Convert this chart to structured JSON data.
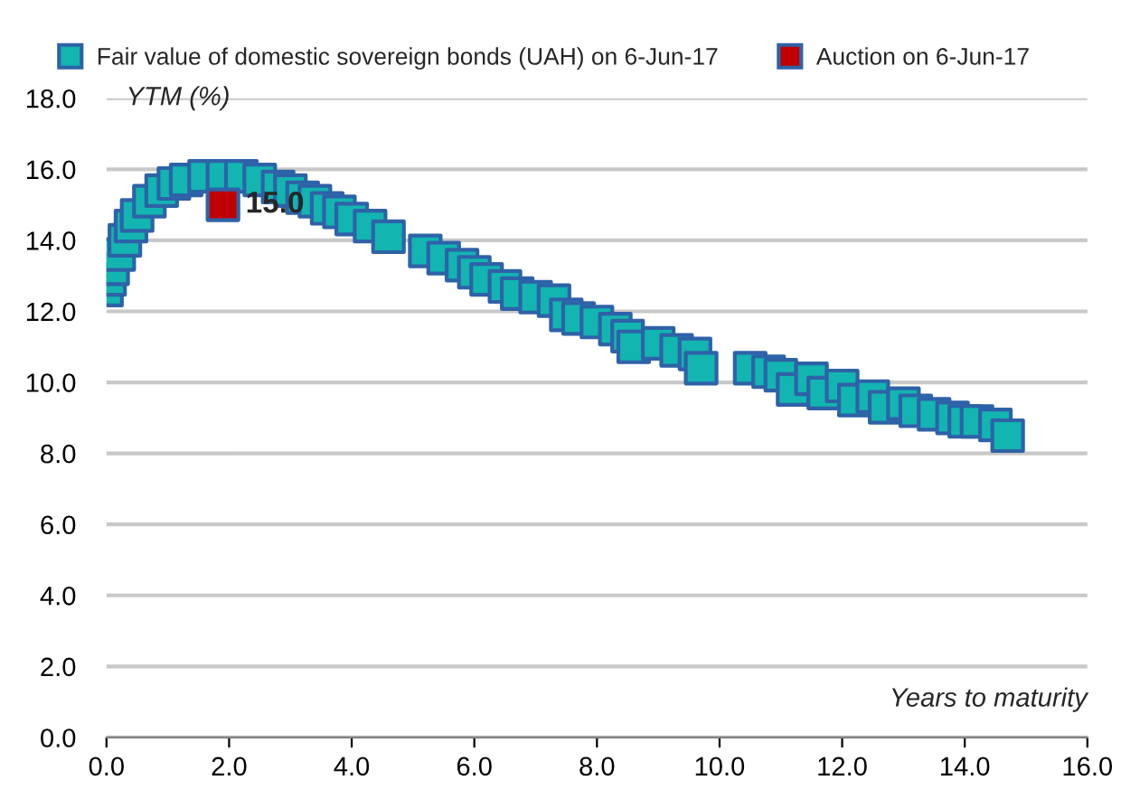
{
  "chart_data": {
    "type": "scatter",
    "xlabel": "Years to maturity",
    "ylabel": "YTM (%)",
    "xlim": [
      0,
      16
    ],
    "xticks": [
      {
        "value": 0,
        "label": "0.0"
      },
      {
        "value": 2,
        "label": "2.0"
      },
      {
        "value": 4,
        "label": "4.0"
      },
      {
        "value": 6,
        "label": "6.0"
      },
      {
        "value": 8,
        "label": "8.0"
      },
      {
        "value": 10,
        "label": "10.0"
      },
      {
        "value": 12,
        "label": "12.0"
      },
      {
        "value": 14,
        "label": "14.0"
      },
      {
        "value": 16,
        "label": "16.0"
      }
    ],
    "ylim": [
      0,
      18
    ],
    "yticks": [
      {
        "value": 0,
        "label": "0.0"
      },
      {
        "value": 2,
        "label": "2.0"
      },
      {
        "value": 4,
        "label": "4.0"
      },
      {
        "value": 6,
        "label": "6.0"
      },
      {
        "value": 8,
        "label": "8.0"
      },
      {
        "value": 10,
        "label": "10.0"
      },
      {
        "value": 12,
        "label": "12.0"
      },
      {
        "value": 14,
        "label": "14.0"
      },
      {
        "value": 16,
        "label": "16.0"
      },
      {
        "value": 18,
        "label": "18.0"
      }
    ],
    "grid": "y",
    "legend": "top",
    "marker": "square",
    "series": [
      {
        "name": "Fair value of domestic sovereign bonds (UAH) on 6-Jun-17",
        "color": "#12b5b0",
        "x": [
          0.0,
          0.05,
          0.1,
          0.2,
          0.3,
          0.4,
          0.5,
          0.7,
          0.9,
          1.1,
          1.3,
          1.6,
          1.9,
          2.2,
          2.5,
          2.8,
          3.0,
          3.2,
          3.4,
          3.6,
          3.8,
          4.0,
          4.3,
          4.6,
          5.2,
          5.5,
          5.8,
          6.0,
          6.2,
          6.5,
          6.7,
          7.0,
          7.3,
          7.5,
          7.7,
          8.0,
          8.3,
          8.5,
          8.6,
          9.0,
          9.3,
          9.6,
          9.7,
          10.5,
          10.8,
          11.0,
          11.2,
          11.5,
          11.7,
          12.0,
          12.2,
          12.5,
          12.7,
          13.0,
          13.2,
          13.5,
          13.8,
          14.0,
          14.2,
          14.5,
          14.7
        ],
        "values": [
          12.6,
          12.9,
          13.2,
          13.6,
          14.0,
          14.4,
          14.7,
          15.1,
          15.4,
          15.6,
          15.7,
          15.8,
          15.8,
          15.8,
          15.7,
          15.5,
          15.4,
          15.2,
          15.1,
          14.9,
          14.8,
          14.6,
          14.4,
          14.1,
          13.7,
          13.5,
          13.3,
          13.1,
          12.9,
          12.7,
          12.5,
          12.4,
          12.3,
          11.9,
          11.8,
          11.7,
          11.5,
          11.3,
          11.0,
          11.1,
          10.9,
          10.8,
          10.4,
          10.4,
          10.3,
          10.2,
          9.8,
          10.1,
          9.7,
          9.9,
          9.5,
          9.6,
          9.3,
          9.4,
          9.2,
          9.1,
          9.0,
          8.9,
          8.9,
          8.8,
          8.5
        ]
      },
      {
        "name": "Auction on 6-Jun-17",
        "color": "#c00000",
        "x": [
          1.9
        ],
        "values": [
          15.0
        ],
        "value_labels": [
          "15.0"
        ]
      }
    ]
  }
}
